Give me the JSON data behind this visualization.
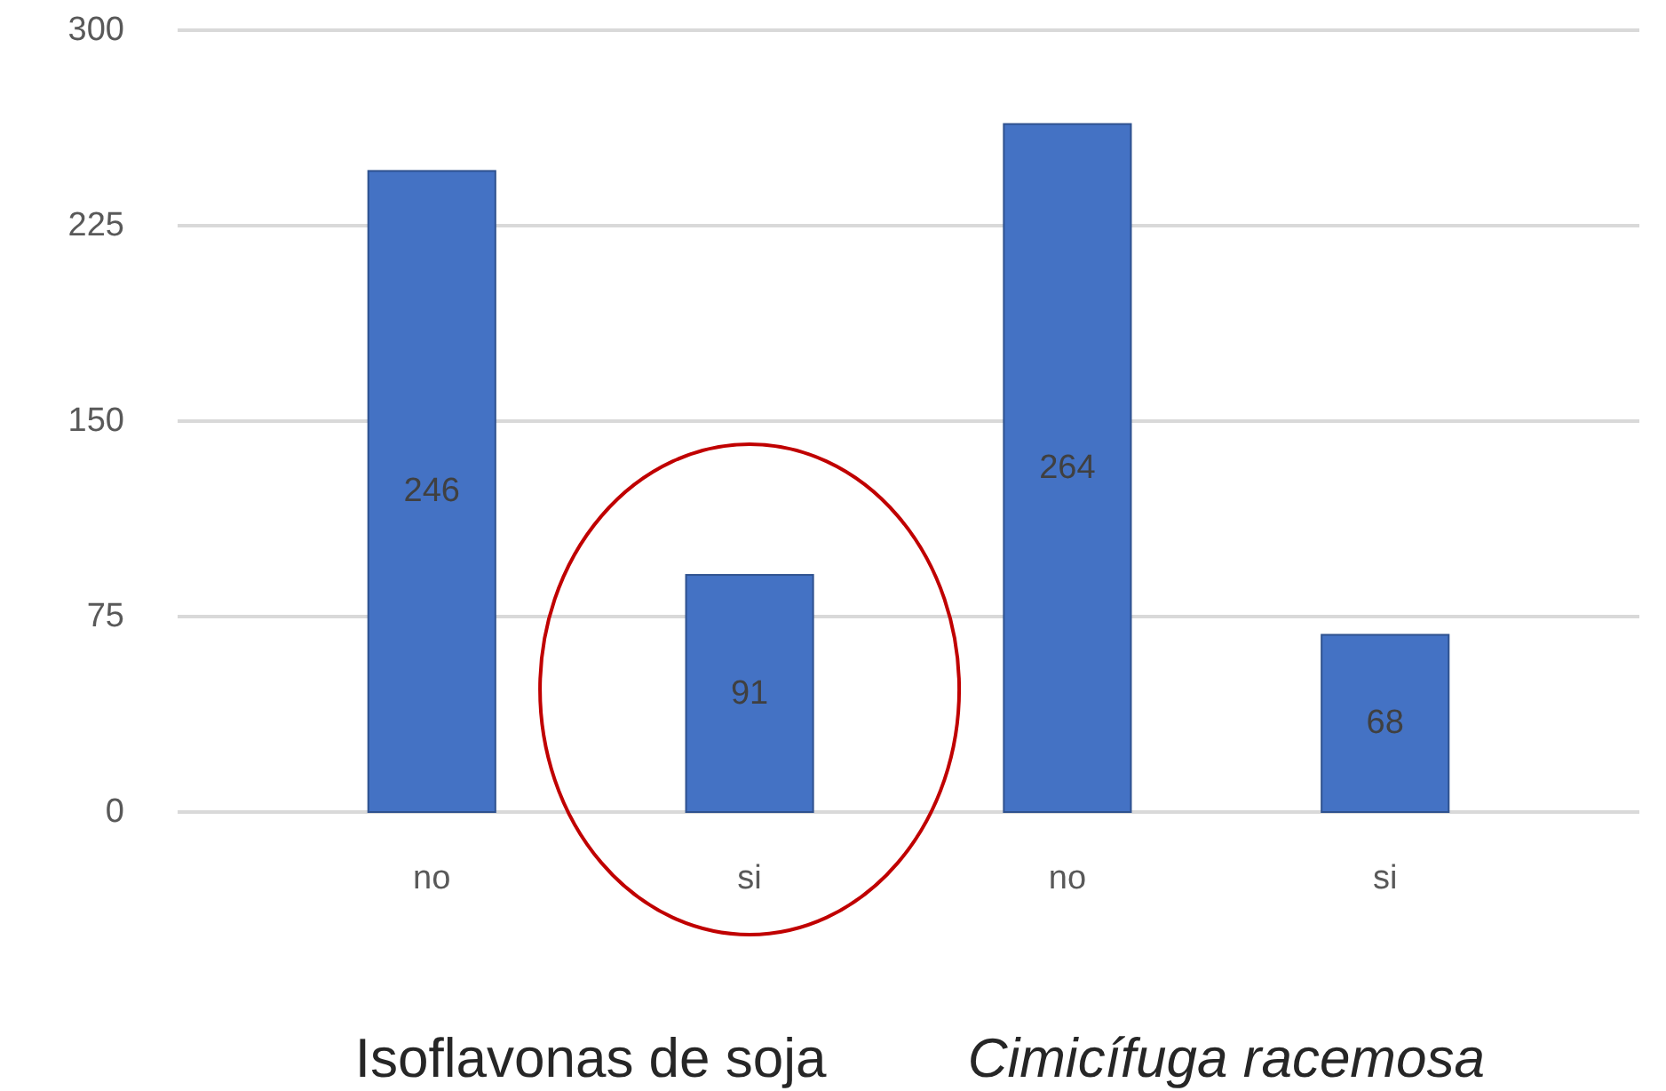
{
  "chart_data": {
    "type": "bar",
    "categories": [
      "no",
      "si",
      "no",
      "si"
    ],
    "values": [
      246,
      91,
      264,
      68
    ],
    "color": "#4472c4",
    "ylim": [
      0,
      300
    ],
    "yticks": [
      0,
      75,
      150,
      225,
      300
    ],
    "grid": "y",
    "data_labels": true,
    "annotations": [
      "Isoflavonas de soja",
      "Cimicífuga racemosa"
    ]
  }
}
